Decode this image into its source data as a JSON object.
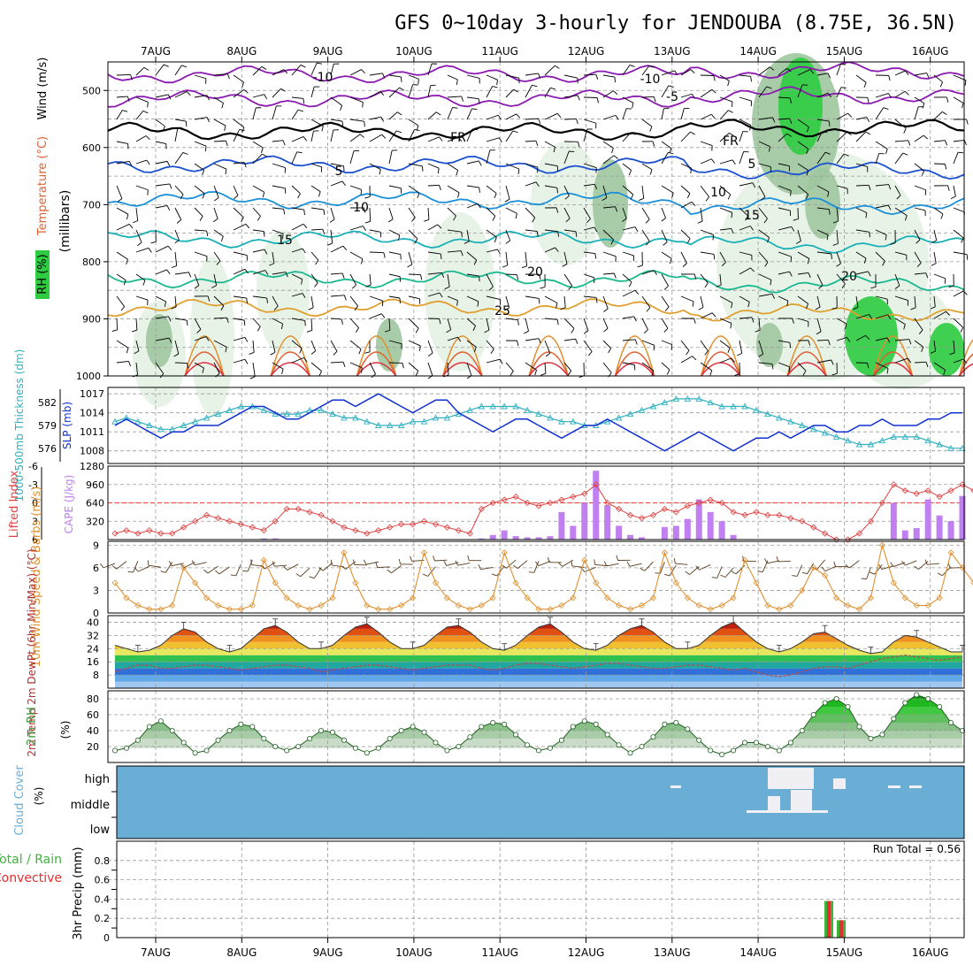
{
  "title": "GFS 0~10day 3-hourly for JENDOUBA (8.75E, 36.5N)",
  "dates": [
    "7AUG",
    "8AUG",
    "9AUG",
    "10AUG",
    "11AUG",
    "12AUG",
    "13AUG",
    "14AUG",
    "15AUG",
    "16AUG"
  ],
  "run_total_label": "Run Total = 0.56",
  "colors": {
    "rh_light": "#e6f2e6",
    "rh_mid": "#9ec79e",
    "rh_dark": "#5a8f5a",
    "rh_green": "#2ecc40",
    "cloud": "#6aaed6",
    "cape": "#c080f0",
    "li": "#e04040",
    "slp": "#1030d0",
    "thick": "#30b0c0",
    "wind": "#e09030",
    "rh2m": "#3a9a3a"
  },
  "chart_data": [
    {
      "type": "line",
      "panel": "upper-air",
      "ylabel_parts": [
        "RH (%)",
        "Temperature (°C)",
        "Wind (m/s)"
      ],
      "yaxis_label": "(millibars)",
      "ylim": [
        1000,
        450
      ],
      "yticks": [
        "500",
        "600",
        "700",
        "800",
        "900",
        "1000"
      ],
      "series": [
        {
          "name": "-10",
          "level": 472
        },
        {
          "name": "-5",
          "level": 515
        },
        {
          "name": "FR",
          "level": 572
        },
        {
          "name": "5",
          "level": 630
        },
        {
          "name": "10",
          "level": 692
        },
        {
          "name": "15",
          "level": 760
        },
        {
          "name": "20",
          "level": 830
        },
        {
          "name": "25",
          "level": 880
        }
      ],
      "contour_labels": [
        "-10",
        "-10",
        "-5",
        "FR",
        "FR",
        "5",
        "5",
        "10",
        "10",
        "15",
        "15",
        "20",
        "20",
        "25"
      ]
    },
    {
      "type": "line",
      "panel": "slp-thickness",
      "ylabel_left": "1000-500mb Thickness (dm)",
      "ylabel_right": "SLP (mb)",
      "yticks_left": [
        "582",
        "579",
        "576"
      ],
      "yticks_right": [
        "1017",
        "1014",
        "1011",
        "1008"
      ],
      "slp_ylim": [
        1006,
        1018
      ],
      "slp": [
        1012,
        1013,
        1012,
        1011,
        1010,
        1011,
        1011,
        1012,
        1012,
        1012,
        1013,
        1014,
        1015,
        1015,
        1014,
        1013,
        1013,
        1014,
        1015,
        1016,
        1016,
        1015,
        1016,
        1017,
        1016,
        1015,
        1014,
        1015,
        1016,
        1016,
        1014,
        1013,
        1012,
        1011,
        1012,
        1013,
        1013,
        1012,
        1011,
        1010,
        1011,
        1012,
        1012,
        1013,
        1012,
        1011,
        1010,
        1009,
        1008,
        1009,
        1010,
        1011,
        1010,
        1009,
        1008,
        1009,
        1010,
        1010,
        1011,
        1010,
        1011,
        1012,
        1012,
        1011,
        1011,
        1012,
        1012,
        1013,
        1012,
        1012,
        1012,
        1013,
        1013,
        1014,
        1014
      ],
      "thickness": [
        579.5,
        580,
        579.5,
        579,
        578.5,
        578.5,
        579,
        579.5,
        580,
        580.5,
        581,
        581.5,
        581.5,
        581,
        580.5,
        580.5,
        580.5,
        581,
        581,
        580.5,
        580,
        580,
        579.5,
        579,
        579,
        579,
        579.5,
        579.5,
        580,
        580,
        580.5,
        581,
        581.5,
        581.5,
        581.5,
        581.5,
        581,
        580.5,
        580,
        579.5,
        579.5,
        579,
        579,
        579.5,
        580,
        580.5,
        581,
        581.5,
        582,
        582.5,
        582.5,
        582.5,
        582,
        581.5,
        581.5,
        581.5,
        581,
        580.5,
        580,
        579.5,
        579,
        578.5,
        578,
        577.5,
        577,
        576.5,
        576.5,
        577,
        577.5,
        577.5,
        577.5,
        577,
        576.5,
        576,
        576
      ]
    },
    {
      "type": "bar",
      "panel": "cape-li",
      "ylabel_left": "Lifted Index",
      "ylabel_right": "CAPE (J/kg)",
      "yticks_left": [
        "-6",
        "-3",
        "0",
        "3",
        "6"
      ],
      "yticks_right": [
        "1280",
        "960",
        "640",
        "320"
      ],
      "cape_ylim": [
        0,
        1280
      ],
      "cape": [
        0,
        0,
        0,
        0,
        0,
        0,
        0,
        0,
        0,
        0,
        0,
        0,
        0,
        20,
        20,
        0,
        0,
        0,
        0,
        0,
        0,
        0,
        0,
        0,
        0,
        0,
        0,
        0,
        0,
        0,
        0,
        0,
        20,
        80,
        160,
        60,
        40,
        40,
        60,
        480,
        240,
        640,
        1200,
        600,
        240,
        80,
        40,
        0,
        220,
        240,
        360,
        700,
        480,
        320,
        80,
        0,
        0,
        0,
        0,
        0,
        0,
        0,
        0,
        0,
        0,
        0,
        0,
        0,
        640,
        160,
        200,
        700,
        420,
        320,
        760,
        0,
        0,
        0,
        0
      ],
      "li_ylim": [
        6,
        -6
      ],
      "li": [
        5,
        4.5,
        5,
        4.5,
        5,
        5,
        4,
        3,
        2,
        2.5,
        3,
        3.5,
        4,
        4.5,
        3,
        1,
        1,
        1.5,
        2,
        3,
        4,
        4.5,
        5,
        4.5,
        4,
        3.5,
        3.5,
        3,
        3.5,
        4,
        4.5,
        5,
        1,
        0,
        -0.5,
        -1,
        0,
        0.5,
        0,
        -0.5,
        -1,
        -1.5,
        -3,
        0,
        1,
        2,
        2.5,
        2,
        1,
        1.5,
        0.5,
        0,
        -0.5,
        0,
        1.5,
        2,
        1.5,
        2,
        2,
        2.5,
        3,
        4,
        5,
        6,
        6,
        5,
        3,
        0,
        -3,
        -2,
        -1.5,
        -2,
        -1,
        -2,
        -3,
        -2,
        1,
        2,
        2
      ]
    },
    {
      "type": "line",
      "panel": "wind10m",
      "ylabel": "10m Wind Speed & Barbs (m/s)",
      "yticks": [
        "9",
        "6",
        "3",
        "0"
      ],
      "ylim": [
        0,
        9.5
      ],
      "values": [
        4,
        2,
        1,
        0.5,
        0.5,
        1,
        6,
        4,
        2,
        1,
        0.5,
        0.5,
        1,
        7,
        4,
        2,
        1,
        0.5,
        1,
        2,
        8,
        4,
        1,
        0.5,
        0.5,
        1,
        2,
        8,
        4,
        2,
        1,
        0.5,
        1,
        2,
        8,
        4,
        2,
        0.5,
        0.5,
        1,
        2,
        7,
        4,
        2,
        1,
        0.5,
        1,
        2,
        8,
        4,
        2,
        1,
        0.5,
        1,
        2,
        7,
        4,
        1,
        0.5,
        1,
        3,
        6,
        5,
        2,
        1,
        0.5,
        2,
        9,
        4,
        2,
        1,
        1,
        2,
        8,
        6,
        4,
        2,
        1,
        3
      ]
    },
    {
      "type": "area",
      "panel": "temp2m",
      "ylabel": "2m Temp 2m DewPt (6hr Min/Max) (°C)",
      "yticks": [
        "40",
        "32",
        "24",
        "16",
        "8"
      ],
      "ylim": [
        0,
        44
      ],
      "temp": [
        26,
        24,
        22,
        23,
        26,
        32,
        36,
        34,
        28,
        24,
        22,
        24,
        30,
        36,
        38,
        34,
        28,
        24,
        24,
        26,
        32,
        37,
        39,
        34,
        28,
        24,
        24,
        26,
        32,
        37,
        38,
        34,
        28,
        24,
        23,
        26,
        32,
        37,
        39,
        34,
        28,
        24,
        23,
        26,
        32,
        36,
        38,
        34,
        28,
        24,
        24,
        26,
        32,
        37,
        40,
        34,
        28,
        24,
        22,
        24,
        28,
        33,
        34,
        30,
        26,
        23,
        21,
        22,
        28,
        32,
        31,
        28,
        25,
        22,
        22
      ],
      "dewpt": [
        10,
        12,
        14,
        14,
        12,
        12,
        13,
        14,
        14,
        13,
        12,
        11,
        12,
        13,
        14,
        14,
        13,
        12,
        10,
        11,
        12,
        13,
        14,
        14,
        13,
        12,
        11,
        12,
        13,
        14,
        14,
        14,
        12,
        11,
        12,
        14,
        15,
        15,
        14,
        13,
        12,
        13,
        14,
        15,
        15,
        14,
        13,
        12,
        12,
        13,
        14,
        14,
        13,
        12,
        11,
        12,
        10,
        8,
        7,
        8,
        10,
        12,
        13,
        13,
        12,
        14,
        16,
        18,
        19,
        20,
        19,
        18,
        17,
        18,
        19
      ]
    },
    {
      "type": "area",
      "panel": "rh2m",
      "ylabel": "2m RH (%)",
      "yticks": [
        "80",
        "60",
        "40",
        "20"
      ],
      "ylim": [
        0,
        90
      ],
      "values": [
        15,
        18,
        28,
        45,
        52,
        40,
        25,
        12,
        15,
        28,
        40,
        48,
        45,
        30,
        20,
        15,
        20,
        30,
        40,
        38,
        28,
        18,
        12,
        18,
        30,
        40,
        45,
        38,
        25,
        15,
        20,
        32,
        45,
        50,
        48,
        35,
        22,
        15,
        18,
        28,
        45,
        52,
        48,
        35,
        22,
        12,
        20,
        32,
        48,
        50,
        42,
        28,
        15,
        10,
        15,
        25,
        25,
        20,
        15,
        25,
        40,
        60,
        75,
        80,
        70,
        45,
        30,
        35,
        55,
        75,
        85,
        80,
        70,
        50,
        40
      ]
    },
    {
      "type": "heatmap",
      "panel": "cloud",
      "ylabel": "Cloud Cover (%)",
      "levels": [
        "high",
        "middle",
        "low"
      ]
    },
    {
      "type": "bar",
      "panel": "precip",
      "ylabel": "3hr Precip (mm)",
      "legend": [
        "Total / Rain",
        "Convective"
      ],
      "yticks": [
        "0.8",
        "0.6",
        "0.4",
        "0.2",
        "0"
      ],
      "ylim": [
        0,
        1.0
      ],
      "bars": [
        {
          "x": 63,
          "total": 0.38,
          "convective": 0.38
        },
        {
          "x": 64,
          "total": 0.18,
          "convective": 0.18
        }
      ]
    }
  ]
}
